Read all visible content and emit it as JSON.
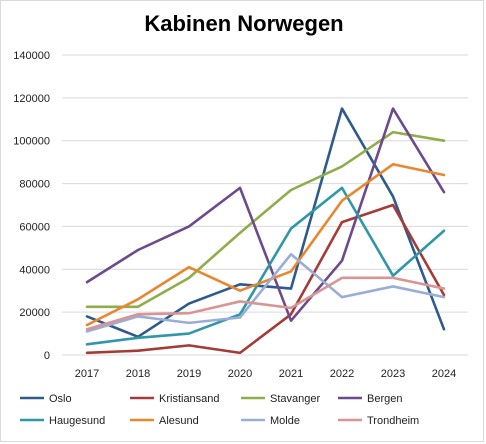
{
  "chart_data": {
    "type": "line",
    "title": "Kabinen Norwegen",
    "xlabel": "",
    "ylabel": "",
    "x": [
      "2017",
      "2018",
      "2019",
      "2020",
      "2021",
      "2022",
      "2023",
      "2024"
    ],
    "ylim": [
      0,
      140000
    ],
    "yticks": [
      "0",
      "20000",
      "40000",
      "60000",
      "80000",
      "100000",
      "120000",
      "140000"
    ],
    "grid": true,
    "legend_position": "bottom",
    "series": [
      {
        "name": "Oslo",
        "color": "#2e5a8c",
        "values": [
          18000,
          8500,
          24000,
          33000,
          31000,
          115000,
          74000,
          12000
        ]
      },
      {
        "name": "Kristiansand",
        "color": "#a33b36",
        "values": [
          1000,
          2000,
          4500,
          1000,
          19000,
          62000,
          70000,
          28000
        ]
      },
      {
        "name": "Stavanger",
        "color": "#8fad4a",
        "values": [
          22500,
          22500,
          36000,
          57000,
          77000,
          88000,
          104000,
          100000
        ]
      },
      {
        "name": "Bergen",
        "color": "#6c4a8c",
        "values": [
          34000,
          49000,
          60000,
          78000,
          16000,
          44000,
          115000,
          76000
        ]
      },
      {
        "name": "Haugesund",
        "color": "#2f97a8",
        "values": [
          5000,
          8000,
          10000,
          19000,
          59000,
          78000,
          37000,
          58000
        ]
      },
      {
        "name": "Alesund",
        "color": "#e8872f",
        "values": [
          14000,
          26000,
          41000,
          30000,
          39000,
          72000,
          89000,
          84000
        ]
      },
      {
        "name": "Molde",
        "color": "#98aed8",
        "values": [
          11000,
          18000,
          15000,
          17500,
          47000,
          27000,
          32000,
          27000
        ]
      },
      {
        "name": "Trondheim",
        "color": "#d99594",
        "values": [
          12000,
          19000,
          19500,
          25000,
          22000,
          36000,
          36000,
          31000
        ]
      }
    ]
  }
}
